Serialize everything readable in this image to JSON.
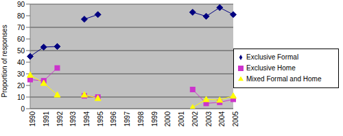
{
  "chart_data": {
    "type": "line",
    "y_label": "Proportion of responses",
    "categories": [
      "1990",
      "1991",
      "1992",
      "1993",
      "1994",
      "1995",
      "1996",
      "1997",
      "1998",
      "1999",
      "2000",
      "2001",
      "2002",
      "2003",
      "2004",
      "2005"
    ],
    "ylim": [
      0,
      90
    ],
    "yticks": [
      0,
      10,
      20,
      30,
      40,
      50,
      60,
      70,
      80,
      90
    ],
    "grid": true,
    "legend": "right",
    "series": [
      {
        "name": "Exclusive Formal",
        "color": "#000080",
        "marker": "diamond",
        "values": [
          45,
          53,
          53.5,
          null,
          77,
          81,
          null,
          null,
          null,
          null,
          null,
          null,
          83,
          79.5,
          87,
          81
        ]
      },
      {
        "name": "Exclusive Home",
        "color": "#CC33CC",
        "marker": "square",
        "values": [
          25,
          24,
          35,
          null,
          11,
          10,
          null,
          null,
          null,
          null,
          null,
          null,
          16.5,
          4.5,
          5.5,
          8
        ]
      },
      {
        "name": "Mixed Formal and Home",
        "color": "#FFFF00",
        "marker": "triangle",
        "values": [
          29,
          22,
          12,
          null,
          12,
          9,
          null,
          null,
          null,
          null,
          null,
          null,
          1,
          8,
          7.5,
          11
        ]
      }
    ]
  }
}
